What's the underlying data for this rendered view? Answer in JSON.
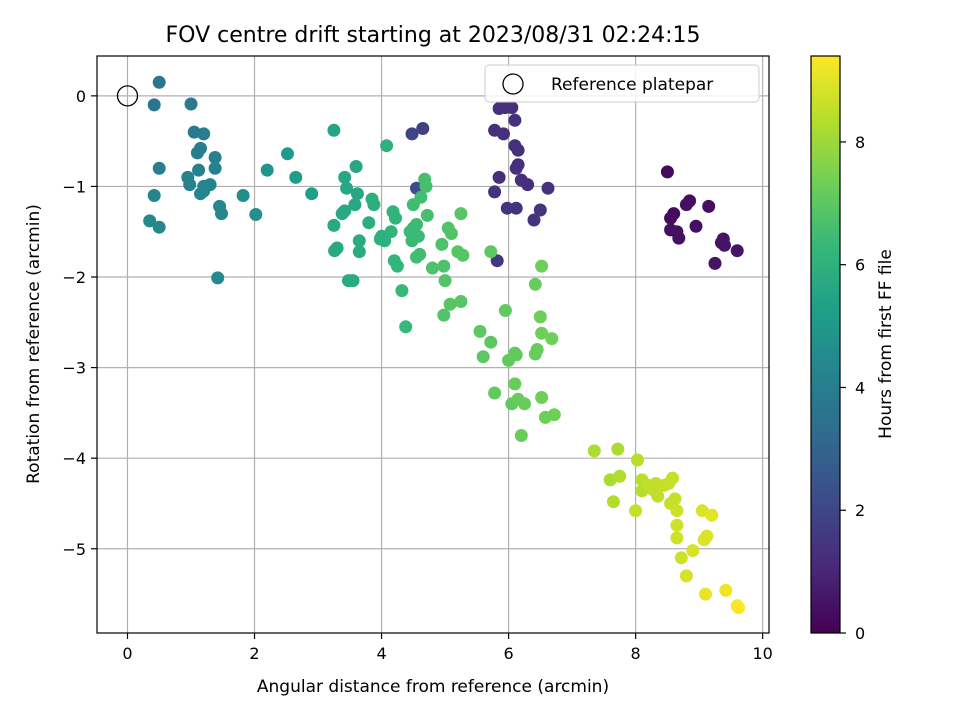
{
  "chart_data": {
    "type": "scatter",
    "title": "FOV centre drift starting at 2023/08/31 02:24:15",
    "xlabel": "Angular distance from reference (arcmin)",
    "ylabel": "Rotation from reference (arcmin)",
    "xlim": [
      -0.48,
      10.1
    ],
    "ylim": [
      -5.93,
      0.44
    ],
    "xticks": [
      0,
      2,
      4,
      6,
      8,
      10
    ],
    "yticks": [
      0,
      -1,
      -2,
      -3,
      -4,
      -5
    ],
    "grid": true,
    "legend": {
      "placement": "top-right",
      "entries": [
        "Reference platepar"
      ]
    },
    "reference_point": {
      "x": 0,
      "y": 0
    },
    "colorbar": {
      "label": "Hours from first FF file",
      "range": [
        0,
        9.4
      ],
      "ticks": [
        0,
        2,
        4,
        6,
        8
      ],
      "colormap": "viridis"
    },
    "points": [
      {
        "x": 8.5,
        "y": -0.84,
        "h": 0.2
      },
      {
        "x": 8.6,
        "y": -1.3,
        "h": 0.3
      },
      {
        "x": 8.55,
        "y": -1.35,
        "h": 0.3
      },
      {
        "x": 8.55,
        "y": -1.48,
        "h": 0.4
      },
      {
        "x": 8.65,
        "y": -1.5,
        "h": 0.4
      },
      {
        "x": 8.68,
        "y": -1.57,
        "h": 0.4
      },
      {
        "x": 8.8,
        "y": -1.2,
        "h": 0.4
      },
      {
        "x": 8.85,
        "y": -1.16,
        "h": 0.4
      },
      {
        "x": 8.95,
        "y": -1.44,
        "h": 0.4
      },
      {
        "x": 9.15,
        "y": -1.22,
        "h": 0.4
      },
      {
        "x": 9.35,
        "y": -1.62,
        "h": 0.5
      },
      {
        "x": 9.38,
        "y": -1.58,
        "h": 0.5
      },
      {
        "x": 9.4,
        "y": -1.65,
        "h": 0.5
      },
      {
        "x": 9.25,
        "y": -1.85,
        "h": 0.5
      },
      {
        "x": 9.6,
        "y": -1.71,
        "h": 0.5
      },
      {
        "x": 5.85,
        "y": -0.14,
        "h": 1.3
      },
      {
        "x": 5.95,
        "y": -0.13,
        "h": 1.3
      },
      {
        "x": 6.05,
        "y": -0.13,
        "h": 1.3
      },
      {
        "x": 5.78,
        "y": -0.38,
        "h": 1.3
      },
      {
        "x": 5.92,
        "y": -0.42,
        "h": 1.3
      },
      {
        "x": 6.1,
        "y": -0.27,
        "h": 1.3
      },
      {
        "x": 6.1,
        "y": -0.55,
        "h": 1.3
      },
      {
        "x": 6.15,
        "y": -0.6,
        "h": 1.3
      },
      {
        "x": 6.12,
        "y": -0.8,
        "h": 1.3
      },
      {
        "x": 6.15,
        "y": -0.76,
        "h": 1.3
      },
      {
        "x": 5.85,
        "y": -0.9,
        "h": 1.3
      },
      {
        "x": 6.2,
        "y": -0.93,
        "h": 1.3
      },
      {
        "x": 6.3,
        "y": -0.98,
        "h": 1.3
      },
      {
        "x": 6.62,
        "y": -1.02,
        "h": 1.3
      },
      {
        "x": 5.78,
        "y": -1.06,
        "h": 1.4
      },
      {
        "x": 5.98,
        "y": -1.24,
        "h": 1.4
      },
      {
        "x": 6.12,
        "y": -1.24,
        "h": 1.4
      },
      {
        "x": 6.5,
        "y": -1.26,
        "h": 1.4
      },
      {
        "x": 6.4,
        "y": -1.37,
        "h": 1.4
      },
      {
        "x": 5.82,
        "y": -1.82,
        "h": 1.5
      },
      {
        "x": 4.65,
        "y": -0.36,
        "h": 1.8
      },
      {
        "x": 4.48,
        "y": -0.42,
        "h": 2.0
      },
      {
        "x": 4.55,
        "y": -1.02,
        "h": 2.2
      },
      {
        "x": 0.5,
        "y": 0.15,
        "h": 3.7
      },
      {
        "x": 0.42,
        "y": -0.1,
        "h": 3.7
      },
      {
        "x": 1.0,
        "y": -0.09,
        "h": 3.8
      },
      {
        "x": 1.05,
        "y": -0.4,
        "h": 3.9
      },
      {
        "x": 1.2,
        "y": -0.42,
        "h": 3.9
      },
      {
        "x": 1.1,
        "y": -0.63,
        "h": 4.0
      },
      {
        "x": 1.15,
        "y": -0.58,
        "h": 4.0
      },
      {
        "x": 0.5,
        "y": -0.8,
        "h": 4.0
      },
      {
        "x": 1.38,
        "y": -0.68,
        "h": 4.1
      },
      {
        "x": 1.38,
        "y": -0.8,
        "h": 4.1
      },
      {
        "x": 0.95,
        "y": -0.9,
        "h": 4.2
      },
      {
        "x": 0.98,
        "y": -0.98,
        "h": 4.2
      },
      {
        "x": 1.12,
        "y": -0.82,
        "h": 4.2
      },
      {
        "x": 1.2,
        "y": -1.0,
        "h": 4.2
      },
      {
        "x": 1.3,
        "y": -0.98,
        "h": 4.2
      },
      {
        "x": 1.15,
        "y": -1.08,
        "h": 4.3
      },
      {
        "x": 1.2,
        "y": -1.05,
        "h": 4.3
      },
      {
        "x": 0.42,
        "y": -1.1,
        "h": 4.3
      },
      {
        "x": 1.45,
        "y": -1.22,
        "h": 4.4
      },
      {
        "x": 1.48,
        "y": -1.3,
        "h": 4.4
      },
      {
        "x": 0.35,
        "y": -1.38,
        "h": 4.4
      },
      {
        "x": 0.5,
        "y": -1.45,
        "h": 4.4
      },
      {
        "x": 1.42,
        "y": -2.01,
        "h": 4.5
      },
      {
        "x": 1.82,
        "y": -1.1,
        "h": 4.6
      },
      {
        "x": 2.02,
        "y": -1.31,
        "h": 4.7
      },
      {
        "x": 2.2,
        "y": -0.82,
        "h": 4.9
      },
      {
        "x": 2.52,
        "y": -0.64,
        "h": 5.1
      },
      {
        "x": 2.65,
        "y": -0.9,
        "h": 5.2
      },
      {
        "x": 2.9,
        "y": -1.08,
        "h": 5.3
      },
      {
        "x": 3.25,
        "y": -0.38,
        "h": 5.5
      },
      {
        "x": 3.6,
        "y": -0.78,
        "h": 5.6
      },
      {
        "x": 3.42,
        "y": -0.9,
        "h": 5.6
      },
      {
        "x": 3.45,
        "y": -1.02,
        "h": 5.6
      },
      {
        "x": 3.62,
        "y": -1.08,
        "h": 5.6
      },
      {
        "x": 3.58,
        "y": -1.2,
        "h": 5.6
      },
      {
        "x": 3.42,
        "y": -1.27,
        "h": 5.7
      },
      {
        "x": 3.38,
        "y": -1.3,
        "h": 5.7
      },
      {
        "x": 3.25,
        "y": -1.43,
        "h": 5.7
      },
      {
        "x": 3.3,
        "y": -1.68,
        "h": 5.7
      },
      {
        "x": 3.26,
        "y": -1.71,
        "h": 5.7
      },
      {
        "x": 3.65,
        "y": -1.6,
        "h": 5.8
      },
      {
        "x": 3.65,
        "y": -1.72,
        "h": 5.8
      },
      {
        "x": 3.48,
        "y": -2.04,
        "h": 5.8
      },
      {
        "x": 3.55,
        "y": -2.04,
        "h": 5.8
      },
      {
        "x": 3.85,
        "y": -1.14,
        "h": 5.9
      },
      {
        "x": 3.88,
        "y": -1.2,
        "h": 5.9
      },
      {
        "x": 3.8,
        "y": -1.4,
        "h": 5.9
      },
      {
        "x": 4.08,
        "y": -0.55,
        "h": 6.0
      },
      {
        "x": 4.0,
        "y": -1.55,
        "h": 6.0
      },
      {
        "x": 4.05,
        "y": -1.6,
        "h": 6.0
      },
      {
        "x": 3.98,
        "y": -1.58,
        "h": 6.0
      },
      {
        "x": 4.18,
        "y": -1.28,
        "h": 6.1
      },
      {
        "x": 4.22,
        "y": -1.35,
        "h": 6.1
      },
      {
        "x": 4.15,
        "y": -1.5,
        "h": 6.1
      },
      {
        "x": 4.2,
        "y": -1.82,
        "h": 6.2
      },
      {
        "x": 4.25,
        "y": -1.88,
        "h": 6.2
      },
      {
        "x": 4.32,
        "y": -2.15,
        "h": 6.3
      },
      {
        "x": 4.38,
        "y": -2.55,
        "h": 6.3
      },
      {
        "x": 4.45,
        "y": -1.5,
        "h": 6.4
      },
      {
        "x": 4.5,
        "y": -1.46,
        "h": 6.4
      },
      {
        "x": 4.55,
        "y": -1.42,
        "h": 6.4
      },
      {
        "x": 4.58,
        "y": -1.55,
        "h": 6.4
      },
      {
        "x": 4.48,
        "y": -1.6,
        "h": 6.4
      },
      {
        "x": 4.55,
        "y": -1.78,
        "h": 6.5
      },
      {
        "x": 4.6,
        "y": -1.75,
        "h": 6.5
      },
      {
        "x": 4.5,
        "y": -1.2,
        "h": 6.5
      },
      {
        "x": 4.62,
        "y": -1.12,
        "h": 6.5
      },
      {
        "x": 4.68,
        "y": -0.92,
        "h": 6.6
      },
      {
        "x": 4.7,
        "y": -1.0,
        "h": 6.6
      },
      {
        "x": 4.72,
        "y": -1.32,
        "h": 6.6
      },
      {
        "x": 4.8,
        "y": -1.9,
        "h": 6.7
      },
      {
        "x": 4.95,
        "y": -1.64,
        "h": 6.7
      },
      {
        "x": 4.98,
        "y": -1.88,
        "h": 6.7
      },
      {
        "x": 5.0,
        "y": -2.04,
        "h": 6.8
      },
      {
        "x": 4.98,
        "y": -2.42,
        "h": 6.8
      },
      {
        "x": 5.05,
        "y": -1.46,
        "h": 6.8
      },
      {
        "x": 5.1,
        "y": -1.52,
        "h": 6.8
      },
      {
        "x": 5.2,
        "y": -1.72,
        "h": 6.9
      },
      {
        "x": 5.28,
        "y": -1.76,
        "h": 6.9
      },
      {
        "x": 5.25,
        "y": -1.3,
        "h": 6.9
      },
      {
        "x": 5.08,
        "y": -2.3,
        "h": 6.9
      },
      {
        "x": 5.25,
        "y": -2.27,
        "h": 6.9
      },
      {
        "x": 5.55,
        "y": -2.6,
        "h": 7.0
      },
      {
        "x": 5.6,
        "y": -2.88,
        "h": 7.0
      },
      {
        "x": 5.72,
        "y": -2.72,
        "h": 7.0
      },
      {
        "x": 5.72,
        "y": -1.72,
        "h": 7.0
      },
      {
        "x": 5.78,
        "y": -3.28,
        "h": 7.1
      },
      {
        "x": 5.95,
        "y": -2.37,
        "h": 7.1
      },
      {
        "x": 6.0,
        "y": -2.92,
        "h": 7.1
      },
      {
        "x": 6.05,
        "y": -3.4,
        "h": 7.1
      },
      {
        "x": 6.1,
        "y": -2.84,
        "h": 7.1
      },
      {
        "x": 6.12,
        "y": -2.86,
        "h": 7.1
      },
      {
        "x": 6.15,
        "y": -3.35,
        "h": 7.2
      },
      {
        "x": 6.2,
        "y": -3.75,
        "h": 7.2
      },
      {
        "x": 6.1,
        "y": -3.18,
        "h": 7.2
      },
      {
        "x": 6.25,
        "y": -3.4,
        "h": 7.2
      },
      {
        "x": 6.42,
        "y": -2.08,
        "h": 7.2
      },
      {
        "x": 6.42,
        "y": -2.85,
        "h": 7.2
      },
      {
        "x": 6.45,
        "y": -2.8,
        "h": 7.2
      },
      {
        "x": 6.52,
        "y": -1.88,
        "h": 7.3
      },
      {
        "x": 6.5,
        "y": -2.44,
        "h": 7.3
      },
      {
        "x": 6.52,
        "y": -2.62,
        "h": 7.3
      },
      {
        "x": 6.52,
        "y": -3.33,
        "h": 7.3
      },
      {
        "x": 6.58,
        "y": -3.55,
        "h": 7.3
      },
      {
        "x": 6.68,
        "y": -2.68,
        "h": 7.3
      },
      {
        "x": 6.72,
        "y": -3.52,
        "h": 7.3
      },
      {
        "x": 7.35,
        "y": -3.92,
        "h": 8.2
      },
      {
        "x": 7.6,
        "y": -4.24,
        "h": 8.2
      },
      {
        "x": 7.72,
        "y": -3.9,
        "h": 8.2
      },
      {
        "x": 7.75,
        "y": -4.2,
        "h": 8.3
      },
      {
        "x": 7.65,
        "y": -4.48,
        "h": 8.3
      },
      {
        "x": 8.03,
        "y": -4.02,
        "h": 8.4
      },
      {
        "x": 8.1,
        "y": -4.24,
        "h": 8.4
      },
      {
        "x": 8.1,
        "y": -4.36,
        "h": 8.4
      },
      {
        "x": 8.2,
        "y": -4.3,
        "h": 8.5
      },
      {
        "x": 8.28,
        "y": -4.35,
        "h": 8.5
      },
      {
        "x": 8.32,
        "y": -4.28,
        "h": 8.5
      },
      {
        "x": 8.35,
        "y": -4.42,
        "h": 8.5
      },
      {
        "x": 8.45,
        "y": -4.3,
        "h": 8.6
      },
      {
        "x": 8.52,
        "y": -4.28,
        "h": 8.6
      },
      {
        "x": 8.58,
        "y": -4.22,
        "h": 8.6
      },
      {
        "x": 8.55,
        "y": -4.5,
        "h": 8.6
      },
      {
        "x": 8.62,
        "y": -4.45,
        "h": 8.6
      },
      {
        "x": 8.0,
        "y": -4.58,
        "h": 8.6
      },
      {
        "x": 8.65,
        "y": -4.58,
        "h": 8.7
      },
      {
        "x": 8.65,
        "y": -4.74,
        "h": 8.7
      },
      {
        "x": 8.65,
        "y": -4.88,
        "h": 8.7
      },
      {
        "x": 8.72,
        "y": -5.1,
        "h": 8.7
      },
      {
        "x": 8.8,
        "y": -5.3,
        "h": 8.8
      },
      {
        "x": 8.9,
        "y": -5.02,
        "h": 8.8
      },
      {
        "x": 9.05,
        "y": -4.58,
        "h": 8.9
      },
      {
        "x": 9.08,
        "y": -4.9,
        "h": 8.9
      },
      {
        "x": 9.12,
        "y": -4.86,
        "h": 8.9
      },
      {
        "x": 9.2,
        "y": -4.63,
        "h": 9.0
      },
      {
        "x": 9.1,
        "y": -5.5,
        "h": 9.1
      },
      {
        "x": 9.42,
        "y": -5.46,
        "h": 9.2
      },
      {
        "x": 9.6,
        "y": -5.63,
        "h": 9.3
      },
      {
        "x": 9.62,
        "y": -5.65,
        "h": 9.4
      }
    ]
  }
}
